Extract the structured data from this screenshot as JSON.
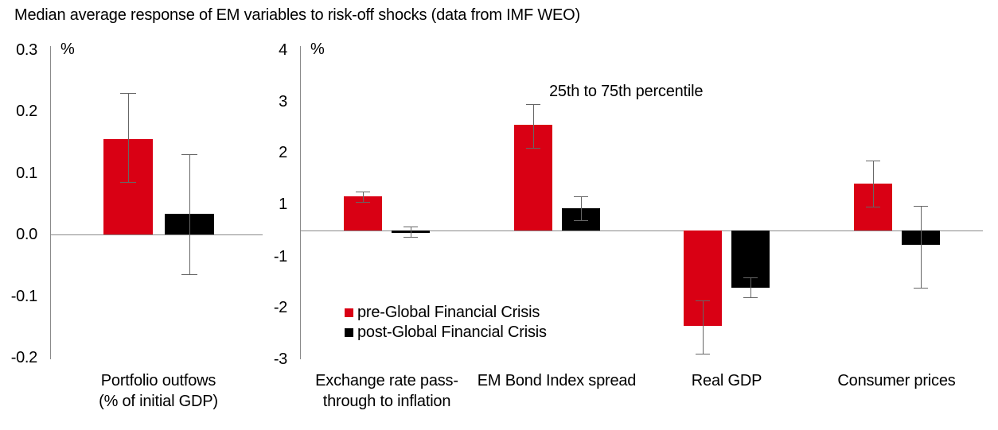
{
  "title": "Median average response of EM variables to risk-off shocks (data from IMF WEO)",
  "annotation": "25th to 75th percentile",
  "colors": {
    "pre_gfc_red": "#d90014",
    "post_gfc_black": "#000000",
    "axis_gray": "#8a8a8a",
    "error_bar_gray": "#666666"
  },
  "legend": {
    "items": [
      {
        "label": "pre-Global Financial Crisis",
        "color": "#d90014"
      },
      {
        "label": "post-Global Financial Crisis",
        "color": "#000000"
      }
    ]
  },
  "chart_data": [
    {
      "type": "bar",
      "panel": "left",
      "unit_label": "%",
      "y_tick_labels": [
        "0.3",
        "0.2",
        "0.1",
        "0.0",
        "-0.1",
        "-0.2"
      ],
      "ylim": [
        -0.2,
        0.3
      ],
      "grid": false,
      "categories": [
        "Portfolio outfows\n(% of initial GDP)"
      ],
      "series": [
        {
          "name": "pre-Global Financial Crisis",
          "color": "#d90014",
          "values": [
            0.155
          ],
          "error_bars_25th_75th": [
            [
              0.085,
              0.23
            ]
          ]
        },
        {
          "name": "post-Global Financial Crisis",
          "color": "#000000",
          "values": [
            0.033
          ],
          "error_bars_25th_75th": [
            [
              -0.065,
              0.13
            ]
          ]
        }
      ]
    },
    {
      "type": "bar",
      "panel": "right",
      "unit_label": "%",
      "y_tick_labels": [
        "4",
        "3",
        "2",
        "1",
        "-1",
        "-2",
        "-3"
      ],
      "ylim": [
        -3,
        4
      ],
      "grid": false,
      "axis_note_visible": false,
      "categories": [
        "Exchange rate pass-\nthrough to inflation",
        "EM Bond Index spread",
        "Real GDP",
        "Consumer prices"
      ],
      "series": [
        {
          "name": "pre-Global Financial Crisis",
          "color": "#d90014",
          "values": [
            1.15,
            2.55,
            -2.35,
            1.4
          ],
          "error_bars_25th_75th": [
            [
              1.05,
              1.25
            ],
            [
              2.1,
              2.95
            ],
            [
              -2.9,
              -1.85
            ],
            [
              0.9,
              1.85
            ]
          ]
        },
        {
          "name": "post-Global Financial Crisis",
          "color": "#000000",
          "values": [
            -0.1,
            0.85,
            -1.6,
            -0.55
          ],
          "error_bars_25th_75th": [
            [
              -0.25,
              0.15
            ],
            [
              0.4,
              1.15
            ],
            [
              -1.8,
              -1.4
            ],
            [
              -1.6,
              0.95
            ]
          ]
        }
      ]
    }
  ]
}
